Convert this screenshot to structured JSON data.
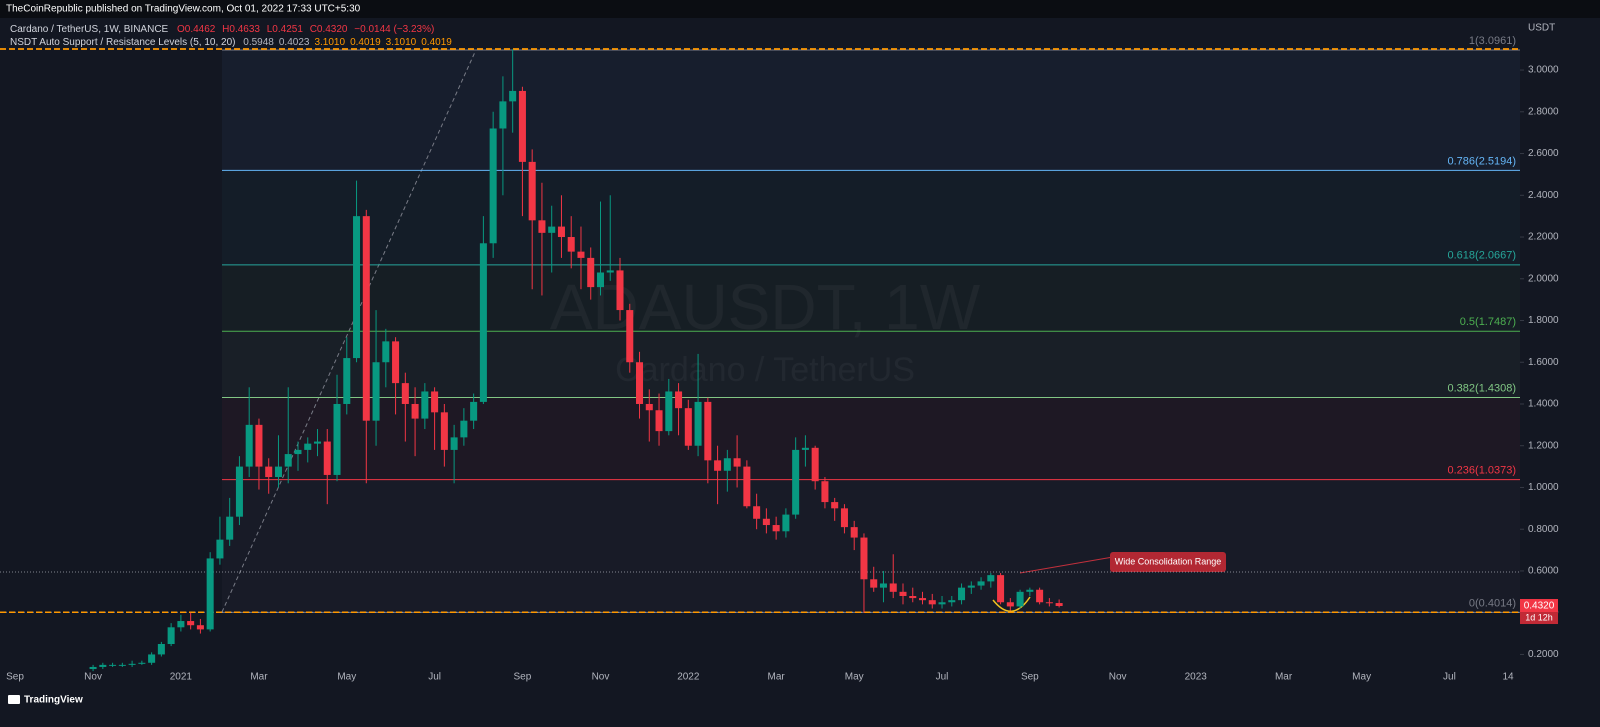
{
  "header": {
    "publisher": "TheCoinRepublic published on TradingView.com, Oct 01, 2022 17:33 UTC+5:30"
  },
  "chart_data": {
    "type": "candlestick",
    "legend": {
      "symbol": "Cardano / TetherUS, 1W, BINANCE",
      "readout": [
        "O0.4462",
        "H0.4633",
        "L0.4251",
        "C0.4320",
        "−0.0144 (−3.23%)"
      ]
    },
    "watermark": [
      "ADAUSDT, 1W",
      "Cardano / TetherUS"
    ],
    "y_axis_label": "USDT",
    "categories": [
      "Sep",
      null,
      null,
      null,
      null,
      null,
      null,
      null,
      "Nov",
      null,
      null,
      null,
      null,
      null,
      null,
      null,
      null,
      "2021",
      null,
      null,
      null,
      null,
      null,
      null,
      null,
      "Mar",
      null,
      null,
      null,
      null,
      null,
      null,
      null,
      null,
      "May",
      null,
      null,
      null,
      null,
      null,
      null,
      null,
      null,
      "Jul",
      null,
      null,
      null,
      null,
      null,
      null,
      null,
      null,
      "Sep",
      null,
      null,
      null,
      null,
      null,
      null,
      null,
      "Nov",
      null,
      null,
      null,
      null,
      null,
      null,
      null,
      null,
      "2022",
      null,
      null,
      null,
      null,
      null,
      null,
      null,
      null,
      "Mar",
      null,
      null,
      null,
      null,
      null,
      null,
      null,
      "May",
      null,
      null,
      null,
      null,
      null,
      null,
      null,
      null,
      "Jul",
      null,
      null,
      null,
      null,
      null,
      null,
      null,
      null,
      "Sep",
      null,
      null,
      null,
      null,
      null,
      null,
      null,
      null,
      "Nov",
      null,
      null,
      null,
      null,
      null,
      null,
      null,
      "2023",
      null,
      null,
      null,
      null,
      null,
      null,
      null,
      null,
      "Mar",
      null,
      null,
      null,
      null,
      null,
      null,
      null,
      "May",
      null,
      null,
      null,
      null,
      null,
      null,
      null,
      null,
      "Jul",
      null,
      null,
      null,
      null,
      null,
      "14"
    ],
    "open": [
      null,
      null,
      null,
      null,
      null,
      null,
      null,
      null,
      0.13,
      0.14,
      0.15,
      0.15,
      0.15,
      0.155,
      0.16,
      0.2,
      0.25,
      0.33,
      0.36,
      0.34,
      0.32,
      0.66,
      0.75,
      0.86,
      1.1,
      1.3,
      1.1,
      1.05,
      1.1,
      1.16,
      1.18,
      1.21,
      1.22,
      1.06,
      1.4,
      1.62,
      2.3,
      1.32,
      1.6,
      1.7,
      1.5,
      1.4,
      1.33,
      1.46,
      1.36,
      1.18,
      1.24,
      1.32,
      1.41,
      2.17,
      2.72,
      2.85,
      2.9,
      2.56,
      2.28,
      2.22,
      2.25,
      2.2,
      2.13,
      2.1,
      1.96,
      2.03,
      2.04,
      1.85,
      1.6,
      1.4,
      1.37,
      1.27,
      1.46,
      1.38,
      1.2,
      1.41,
      1.13,
      1.08,
      1.14,
      1.1,
      0.91,
      0.85,
      0.82,
      0.79,
      0.87,
      1.18,
      1.19,
      1.03,
      0.93,
      0.9,
      0.81,
      0.76,
      0.56,
      0.52,
      0.54,
      0.5,
      0.48,
      0.47,
      0.46,
      0.44,
      0.45,
      0.46,
      0.52,
      0.53,
      0.55,
      0.58,
      0.45,
      0.43,
      0.5,
      0.51,
      0.45,
      0.4462,
      null,
      null,
      null,
      null,
      null,
      null,
      null,
      null,
      null,
      null,
      null,
      null,
      null,
      null,
      null,
      null,
      null,
      null,
      null,
      null,
      null,
      null,
      null,
      null,
      null,
      null,
      null,
      null,
      null,
      null,
      null,
      null,
      null,
      null,
      null,
      null,
      null,
      null,
      null,
      null,
      null,
      null,
      null,
      null,
      null,
      null
    ],
    "high": [
      null,
      null,
      null,
      null,
      null,
      null,
      null,
      null,
      0.15,
      0.16,
      0.16,
      0.16,
      0.17,
      0.17,
      0.21,
      0.26,
      0.35,
      0.39,
      0.4,
      0.37,
      0.69,
      0.86,
      0.95,
      1.15,
      1.48,
      1.33,
      1.14,
      1.25,
      1.48,
      1.22,
      1.24,
      1.28,
      1.28,
      1.54,
      1.72,
      2.47,
      2.33,
      1.85,
      1.76,
      1.72,
      1.55,
      1.48,
      1.5,
      1.48,
      1.4,
      1.3,
      1.38,
      1.45,
      2.3,
      2.8,
      2.97,
      3.1,
      2.92,
      2.62,
      2.46,
      2.35,
      2.4,
      2.3,
      2.25,
      2.15,
      2.37,
      2.4,
      2.1,
      1.88,
      1.65,
      1.47,
      1.45,
      1.52,
      1.5,
      1.42,
      1.64,
      1.43,
      1.2,
      1.18,
      1.25,
      1.13,
      0.97,
      0.9,
      0.86,
      0.9,
      1.24,
      1.25,
      1.2,
      1.05,
      0.95,
      0.92,
      0.84,
      0.78,
      0.62,
      0.6,
      0.68,
      0.54,
      0.52,
      0.5,
      0.49,
      0.48,
      0.48,
      0.54,
      0.55,
      0.57,
      0.59,
      0.59,
      0.47,
      0.51,
      0.52,
      0.52,
      0.47,
      0.4633,
      null,
      null,
      null,
      null,
      null,
      null,
      null,
      null,
      null,
      null,
      null,
      null,
      null,
      null,
      null,
      null,
      null,
      null,
      null,
      null,
      null,
      null,
      null,
      null,
      null,
      null,
      null,
      null,
      null,
      null,
      null,
      null,
      null,
      null,
      null,
      null,
      null,
      null,
      null,
      null,
      null,
      null,
      null,
      null,
      null,
      null
    ],
    "low": [
      null,
      null,
      null,
      null,
      null,
      null,
      null,
      null,
      0.12,
      0.13,
      0.14,
      0.14,
      0.14,
      0.15,
      0.15,
      0.19,
      0.24,
      0.31,
      0.32,
      0.3,
      0.31,
      0.63,
      0.72,
      0.82,
      1.05,
      0.99,
      0.97,
      1.0,
      1.02,
      1.08,
      1.12,
      1.15,
      0.92,
      1.03,
      1.35,
      1.6,
      1.02,
      1.2,
      1.48,
      1.35,
      1.22,
      1.15,
      1.28,
      1.18,
      1.1,
      1.02,
      1.2,
      1.28,
      1.4,
      2.1,
      2.4,
      2.7,
      2.3,
      1.95,
      1.92,
      2.03,
      2.1,
      2.05,
      1.95,
      1.9,
      1.92,
      1.99,
      1.8,
      1.55,
      1.33,
      1.22,
      1.2,
      1.25,
      1.25,
      1.18,
      1.15,
      1.02,
      0.92,
      0.98,
      1.0,
      0.9,
      0.8,
      0.78,
      0.75,
      0.76,
      0.85,
      1.1,
      0.99,
      0.9,
      0.84,
      0.78,
      0.7,
      0.4,
      0.5,
      0.45,
      0.47,
      0.44,
      0.45,
      0.44,
      0.42,
      0.42,
      0.43,
      0.44,
      0.49,
      0.51,
      0.52,
      0.44,
      0.41,
      0.42,
      0.48,
      0.44,
      0.43,
      0.4251,
      null,
      null,
      null,
      null,
      null,
      null,
      null,
      null,
      null,
      null,
      null,
      null,
      null,
      null,
      null,
      null,
      null,
      null,
      null,
      null,
      null,
      null,
      null,
      null,
      null,
      null,
      null,
      null,
      null,
      null,
      null,
      null,
      null,
      null,
      null,
      null,
      null,
      null,
      null,
      null,
      null,
      null,
      null,
      null,
      null,
      null
    ],
    "close": [
      null,
      null,
      null,
      null,
      null,
      null,
      null,
      null,
      0.14,
      0.15,
      0.15,
      0.15,
      0.155,
      0.16,
      0.2,
      0.25,
      0.33,
      0.36,
      0.34,
      0.32,
      0.66,
      0.75,
      0.86,
      1.1,
      1.3,
      1.1,
      1.05,
      1.1,
      1.16,
      1.18,
      1.21,
      1.22,
      1.06,
      1.4,
      1.62,
      2.3,
      1.32,
      1.6,
      1.7,
      1.5,
      1.4,
      1.33,
      1.46,
      1.36,
      1.18,
      1.24,
      1.32,
      1.41,
      2.17,
      2.72,
      2.85,
      2.9,
      2.56,
      2.28,
      2.22,
      2.25,
      2.2,
      2.13,
      2.1,
      1.96,
      2.03,
      2.04,
      1.85,
      1.6,
      1.4,
      1.37,
      1.27,
      1.46,
      1.38,
      1.2,
      1.41,
      1.13,
      1.08,
      1.14,
      1.1,
      0.91,
      0.85,
      0.82,
      0.79,
      0.87,
      1.18,
      1.19,
      1.03,
      0.93,
      0.9,
      0.81,
      0.76,
      0.56,
      0.52,
      0.54,
      0.5,
      0.48,
      0.47,
      0.46,
      0.44,
      0.45,
      0.46,
      0.52,
      0.53,
      0.55,
      0.58,
      0.45,
      0.43,
      0.5,
      0.51,
      0.45,
      0.4462,
      0.432,
      null,
      null,
      null,
      null,
      null,
      null,
      null,
      null,
      null,
      null,
      null,
      null,
      null,
      null,
      null,
      null,
      null,
      null,
      null,
      null,
      null,
      null,
      null,
      null,
      null,
      null,
      null,
      null,
      null,
      null,
      null,
      null,
      null,
      null,
      null,
      null,
      null,
      null,
      null,
      null,
      null,
      null,
      null,
      null,
      null,
      null
    ],
    "up_color": "#089981",
    "down_color": "#f23645",
    "ylim": [
      0.135,
      3.144
    ],
    "yticks": [
      {
        "value": 0.2,
        "label": "0.2000"
      },
      {
        "value": 0.4,
        "label": "0.4000"
      },
      {
        "value": 0.6,
        "label": "0.6000"
      },
      {
        "value": 0.8,
        "label": "0.8000"
      },
      {
        "value": 1.0,
        "label": "1.0000"
      },
      {
        "value": 1.2,
        "label": "1.2000"
      },
      {
        "value": 1.4,
        "label": "1.4000"
      },
      {
        "value": 1.6,
        "label": "1.6000"
      },
      {
        "value": 1.8,
        "label": "1.8000"
      },
      {
        "value": 2.0,
        "label": "2.0000"
      },
      {
        "value": 2.2,
        "label": "2.2000"
      },
      {
        "value": 2.4,
        "label": "2.4000"
      },
      {
        "value": 2.6,
        "label": "2.6000"
      },
      {
        "value": 2.8,
        "label": "2.8000"
      },
      {
        "value": 3.0,
        "label": "3.0000"
      }
    ],
    "fib_levels": [
      {
        "label": "1(3.0961)",
        "value": 3.0961,
        "color": "#787b86"
      },
      {
        "label": "0.786(2.5194)",
        "value": 2.5194,
        "color": "#64b5f6"
      },
      {
        "label": "0.618(2.0667)",
        "value": 2.0667,
        "color": "#26a69a"
      },
      {
        "label": "0.5(1.7487)",
        "value": 1.7487,
        "color": "#4caf50"
      },
      {
        "label": "0.382(1.4308)",
        "value": 1.4308,
        "color": "#81c784"
      },
      {
        "label": "0.236(1.0373)",
        "value": 1.0373,
        "color": "#f23645"
      },
      {
        "label": "0(0.4014)",
        "value": 0.4014,
        "color": "#787b86"
      }
    ],
    "indicator": {
      "name": "NSDT Auto Support / Resistance Levels (5, 10, 20)",
      "values": [
        0.5948,
        0.4023,
        3.101,
        0.4019,
        3.101,
        0.4019
      ],
      "value_labels": [
        "0.5948",
        "0.4023",
        "3.1010",
        "0.4019",
        "3.1010",
        "0.4019"
      ],
      "colors": [
        "#b2b5be",
        "#b2b5be",
        "#ff9800",
        "#ff9800",
        "#ff9800",
        "#ff9800"
      ]
    },
    "current_price": {
      "label": "0.4320",
      "countdown": "1d 12h"
    },
    "annotation": "Wide Consolidation Range"
  },
  "footer": {
    "brand": "TradingView"
  }
}
